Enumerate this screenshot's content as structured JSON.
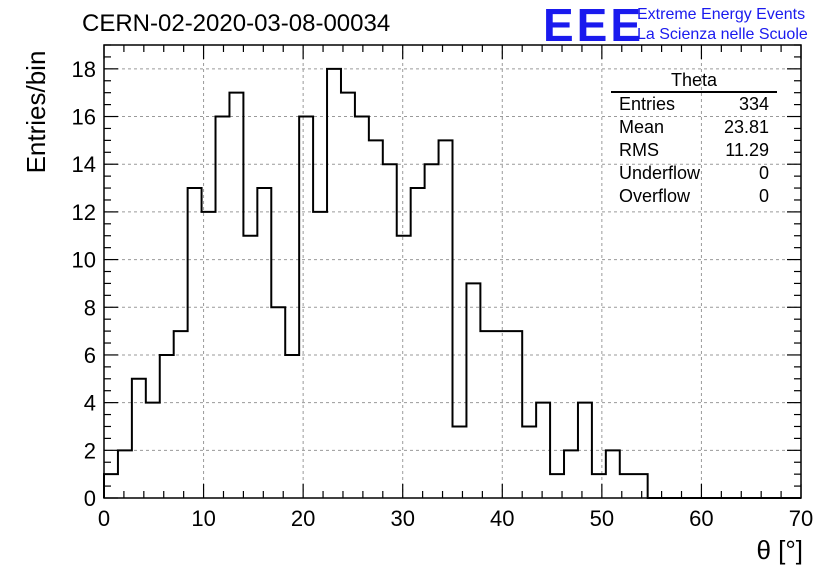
{
  "header": {
    "title": "CERN-02-2020-03-08-00034",
    "logo_text": "EEE",
    "brand_line_1": "Extreme Energy Events",
    "brand_line_2": "La Scienza nelle Scuole",
    "brand_color": "#1a1aee"
  },
  "stats_box": {
    "title": "Theta",
    "rows": [
      {
        "label": "Entries",
        "value": "334"
      },
      {
        "label": "Mean",
        "value": "23.81"
      },
      {
        "label": "RMS",
        "value": "11.29"
      },
      {
        "label": "Underflow",
        "value": "0"
      },
      {
        "label": "Overflow",
        "value": "0"
      }
    ]
  },
  "chart_data": {
    "type": "histogram",
    "title": "CERN-02-2020-03-08-00034",
    "xlabel": "θ [°]",
    "ylabel": "Entries/bin",
    "xlim": [
      0,
      70
    ],
    "ylim": [
      0,
      19
    ],
    "xticks": [
      0,
      10,
      20,
      30,
      40,
      50,
      60,
      70
    ],
    "yticks": [
      0,
      2,
      4,
      6,
      8,
      10,
      12,
      14,
      16,
      18
    ],
    "grid": true,
    "bin_edges_start": 0,
    "bin_width": 1.4,
    "values": [
      1,
      2,
      5,
      4,
      6,
      7,
      13,
      12,
      16,
      17,
      11,
      13,
      8,
      6,
      16,
      12,
      18,
      17,
      16,
      15,
      14,
      11,
      13,
      14,
      15,
      3,
      9,
      7,
      7,
      7,
      3,
      4,
      1,
      2,
      4,
      1,
      2,
      1,
      1,
      0,
      0,
      0,
      0,
      0,
      0,
      0,
      0,
      0,
      0,
      0
    ],
    "line_color": "#000000"
  }
}
